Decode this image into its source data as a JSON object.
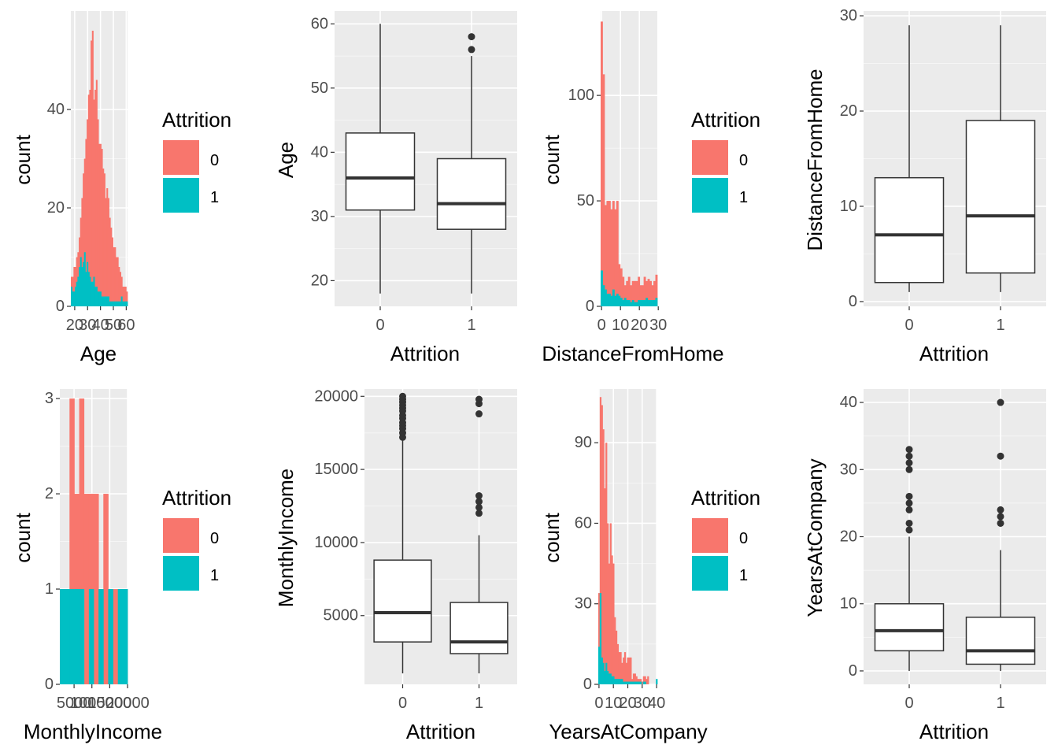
{
  "colors": {
    "panel_bg": "#EBEBEB",
    "grid_major": "#FFFFFF",
    "grid_minor": "#F5F5F5",
    "stayed": "#F8766D",
    "left": "#00BFC4",
    "box_line": "#333333",
    "tick_text": "#4D4D4D"
  },
  "legend": {
    "title": "Attrition",
    "labels": [
      "0",
      "1"
    ]
  },
  "chart_data": [
    {
      "type": "bar",
      "id": "hist-age",
      "xlabel": "Age",
      "ylabel": "count",
      "xlim": [
        17,
        61
      ],
      "ylim": [
        0,
        60
      ],
      "xticks": [
        20,
        30,
        40,
        50,
        60
      ],
      "xtick_labels": [
        "20",
        "30",
        "40",
        "50",
        "60"
      ],
      "yticks": [
        0,
        20,
        40
      ],
      "ytick_labels": [
        "0",
        "20",
        "40"
      ],
      "x": [
        18,
        19,
        20,
        21,
        22,
        23,
        24,
        25,
        26,
        27,
        28,
        29,
        30,
        31,
        32,
        33,
        34,
        35,
        36,
        37,
        38,
        39,
        40,
        41,
        42,
        43,
        44,
        45,
        46,
        47,
        48,
        49,
        50,
        51,
        52,
        53,
        54,
        55,
        56,
        57,
        58,
        59,
        60
      ],
      "series": [
        {
          "name": "0",
          "values": [
            6,
            6,
            8,
            8,
            10,
            11,
            14,
            18,
            22,
            27,
            30,
            34,
            38,
            43,
            44,
            54,
            56,
            42,
            44,
            46,
            38,
            33,
            33,
            32,
            28,
            27,
            22,
            24,
            22,
            18,
            16,
            14,
            12,
            12,
            10,
            10,
            8,
            7,
            6,
            4,
            4,
            4,
            3
          ]
        },
        {
          "name": "1",
          "values": [
            4,
            3,
            3,
            4,
            5,
            6,
            8,
            10,
            8,
            9,
            11,
            7,
            9,
            7,
            6,
            5,
            5,
            6,
            4,
            4,
            3,
            3,
            3,
            2,
            2,
            2,
            2,
            2,
            2,
            1,
            1,
            1,
            1,
            1,
            1,
            1,
            1,
            1,
            2,
            1,
            1,
            1,
            1
          ]
        }
      ]
    },
    {
      "type": "box",
      "id": "box-age",
      "xlabel": "Attrition",
      "ylabel": "Age",
      "categories": [
        "0",
        "1"
      ],
      "ylim": [
        16,
        62
      ],
      "yticks": [
        20,
        30,
        40,
        50,
        60
      ],
      "ytick_labels": [
        "20",
        "30",
        "40",
        "50",
        "60"
      ],
      "boxes": [
        {
          "category": "0",
          "min": 18,
          "q1": 31,
          "median": 36,
          "q3": 43,
          "max": 60,
          "outliers": []
        },
        {
          "category": "1",
          "min": 18,
          "q1": 28,
          "median": 32,
          "q3": 39,
          "max": 55,
          "outliers": [
            56,
            58
          ]
        }
      ]
    },
    {
      "type": "bar",
      "id": "hist-distance",
      "xlabel": "DistanceFromHome",
      "ylabel": "count",
      "xlim": [
        -0.5,
        29.5
      ],
      "ylim": [
        0,
        140
      ],
      "xticks": [
        0,
        10,
        20,
        30
      ],
      "xtick_labels": [
        "0",
        "10",
        "20",
        "30"
      ],
      "yticks": [
        0,
        50,
        100
      ],
      "ytick_labels": [
        "0",
        "50",
        "100"
      ],
      "x": [
        1,
        2,
        3,
        4,
        5,
        6,
        7,
        8,
        9,
        10,
        11,
        12,
        13,
        14,
        15,
        16,
        17,
        18,
        19,
        20,
        21,
        22,
        23,
        24,
        25,
        26,
        27,
        28,
        29
      ],
      "series": [
        {
          "name": "0",
          "values": [
            135,
            110,
            48,
            50,
            50,
            46,
            50,
            46,
            50,
            20,
            18,
            14,
            10,
            12,
            14,
            10,
            12,
            12,
            12,
            14,
            10,
            10,
            14,
            12,
            13,
            12,
            10,
            12,
            15
          ]
        },
        {
          "name": "1",
          "values": [
            17,
            10,
            8,
            6,
            6,
            5,
            8,
            5,
            6,
            5,
            4,
            3,
            4,
            3,
            3,
            2,
            3,
            2,
            2,
            3,
            3,
            3,
            3,
            4,
            3,
            3,
            3,
            3,
            4
          ]
        }
      ]
    },
    {
      "type": "box",
      "id": "box-distance",
      "xlabel": "Attrition",
      "ylabel": "DistanceFromHome",
      "categories": [
        "0",
        "1"
      ],
      "ylim": [
        -0.5,
        30.5
      ],
      "yticks": [
        0,
        10,
        20,
        30
      ],
      "ytick_labels": [
        "0",
        "10",
        "20",
        "30"
      ],
      "boxes": [
        {
          "category": "0",
          "min": 1,
          "q1": 2,
          "median": 7,
          "q3": 13,
          "max": 29,
          "outliers": []
        },
        {
          "category": "1",
          "min": 1,
          "q1": 3,
          "median": 9,
          "q3": 19,
          "max": 29,
          "outliers": []
        }
      ]
    },
    {
      "type": "bar",
      "id": "hist-income",
      "xlabel": "MonthlyIncome",
      "ylabel": "count",
      "xlim": [
        1000,
        20000
      ],
      "ylim": [
        0,
        3.1
      ],
      "xticks": [
        5000,
        10000,
        15000,
        20000
      ],
      "xtick_labels": [
        "5000",
        "10000",
        "15000",
        "20000"
      ],
      "yticks": [
        0,
        1,
        2,
        3
      ],
      "ytick_labels": [
        "0",
        "1",
        "2",
        "3"
      ],
      "x": [
        1100,
        1500,
        2000,
        2400,
        2800,
        3000,
        3500,
        4000,
        4500,
        5000,
        5500,
        6000,
        6500,
        7000
      ],
      "series": [
        {
          "name": "0",
          "values": [
            1,
            1,
            3,
            2,
            3,
            2,
            2,
            2,
            1,
            2,
            1,
            1,
            1,
            1
          ]
        },
        {
          "name": "1",
          "values": [
            1,
            1,
            1,
            1,
            1,
            0,
            1,
            0,
            1,
            0,
            1,
            0,
            1,
            1
          ]
        }
      ]
    },
    {
      "type": "box",
      "id": "box-income",
      "xlabel": "Attrition",
      "ylabel": "MonthlyIncome",
      "categories": [
        "0",
        "1"
      ],
      "ylim": [
        300,
        20500
      ],
      "yticks": [
        5000,
        10000,
        15000,
        20000
      ],
      "ytick_labels": [
        "5000",
        "10000",
        "15000",
        "20000"
      ],
      "boxes": [
        {
          "category": "0",
          "min": 1050,
          "q1": 3200,
          "median": 5200,
          "q3": 8800,
          "max": 17000,
          "outliers": [
            17200,
            17500,
            17800,
            18000,
            18200,
            18500,
            18700,
            19000,
            19200,
            19400,
            19600,
            19800,
            20000
          ]
        },
        {
          "category": "1",
          "min": 1050,
          "q1": 2400,
          "median": 3200,
          "q3": 5900,
          "max": 10500,
          "outliers": [
            12000,
            12400,
            12800,
            13200,
            18800,
            19500,
            19800
          ]
        }
      ]
    },
    {
      "type": "bar",
      "id": "hist-years",
      "xlabel": "YearsAtCompany",
      "ylabel": "count",
      "xlim": [
        -0.5,
        40.5
      ],
      "ylim": [
        0,
        110
      ],
      "xticks": [
        0,
        10,
        20,
        30,
        40
      ],
      "xtick_labels": [
        "0",
        "10",
        "20",
        "30",
        "40"
      ],
      "yticks": [
        0,
        30,
        60,
        90
      ],
      "ytick_labels": [
        "0",
        "30",
        "60",
        "90"
      ],
      "x": [
        0,
        1,
        2,
        3,
        4,
        5,
        6,
        7,
        8,
        9,
        10,
        11,
        12,
        13,
        14,
        15,
        16,
        17,
        18,
        19,
        20,
        21,
        22,
        23,
        24,
        25,
        26,
        27,
        28,
        29,
        30,
        31,
        32,
        33,
        34,
        35,
        36,
        37,
        38,
        39,
        40
      ],
      "series": [
        {
          "name": "0",
          "values": [
            34,
            107,
            104,
            95,
            73,
            90,
            60,
            45,
            60,
            48,
            45,
            25,
            20,
            15,
            12,
            12,
            8,
            10,
            12,
            8,
            10,
            10,
            10,
            2,
            4,
            4,
            3,
            2,
            2,
            2,
            1,
            3,
            3,
            2,
            3,
            0,
            0,
            0,
            0,
            0,
            0
          ]
        },
        {
          "name": "1",
          "values": [
            14,
            34,
            10,
            8,
            5,
            8,
            5,
            4,
            4,
            3,
            3,
            2,
            2,
            2,
            2,
            2,
            2,
            1,
            1,
            1,
            1,
            1,
            1,
            1,
            1,
            1,
            1,
            1,
            1,
            1,
            0,
            1,
            1,
            0,
            0,
            0,
            0,
            0,
            0,
            0,
            2
          ]
        }
      ]
    },
    {
      "type": "box",
      "id": "box-years",
      "xlabel": "Attrition",
      "ylabel": "YearsAtCompany",
      "categories": [
        "0",
        "1"
      ],
      "ylim": [
        -2,
        42
      ],
      "yticks": [
        0,
        10,
        20,
        30,
        40
      ],
      "ytick_labels": [
        "0",
        "10",
        "20",
        "30",
        "40"
      ],
      "boxes": [
        {
          "category": "0",
          "min": 0,
          "q1": 3,
          "median": 6,
          "q3": 10,
          "max": 20,
          "outliers": [
            21,
            22,
            24,
            25,
            26,
            30,
            31,
            32,
            33
          ]
        },
        {
          "category": "1",
          "min": 0,
          "q1": 1,
          "median": 3,
          "q3": 8,
          "max": 18,
          "outliers": [
            22,
            23,
            24,
            32,
            40
          ]
        }
      ]
    }
  ]
}
